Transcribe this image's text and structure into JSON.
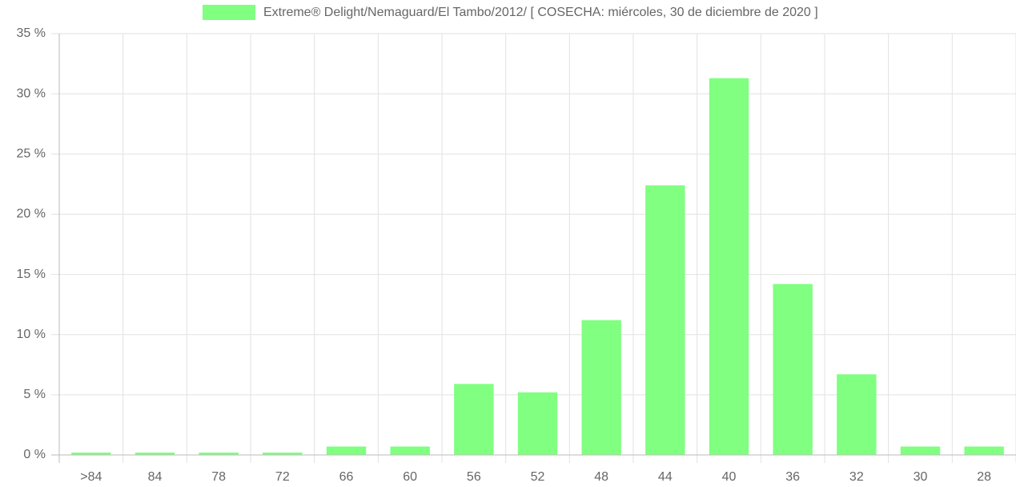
{
  "chart_data": {
    "type": "bar",
    "legend_label": "Extreme® Delight/Nemaguard/El Tambo/2012/ [ COSECHA: miércoles, 30 de diciembre de 2020 ]",
    "categories": [
      ">84",
      "84",
      "78",
      "72",
      "66",
      "60",
      "56",
      "52",
      "48",
      "44",
      "40",
      "36",
      "32",
      "30",
      "28"
    ],
    "values": [
      0.2,
      0.2,
      0.2,
      0.2,
      0.7,
      0.7,
      5.9,
      5.2,
      11.2,
      22.4,
      31.3,
      14.2,
      6.7,
      0.7,
      0.7
    ],
    "color": "#80ff80",
    "ylim": [
      0,
      35
    ],
    "yticks": [
      {
        "value": 0,
        "label": "0 %"
      },
      {
        "value": 5,
        "label": "5 %"
      },
      {
        "value": 10,
        "label": "10 %"
      },
      {
        "value": 15,
        "label": "15 %"
      },
      {
        "value": 20,
        "label": "20 %"
      },
      {
        "value": 25,
        "label": "25 %"
      },
      {
        "value": 30,
        "label": "30 %"
      },
      {
        "value": 35,
        "label": "35 %"
      }
    ],
    "grid": true
  }
}
